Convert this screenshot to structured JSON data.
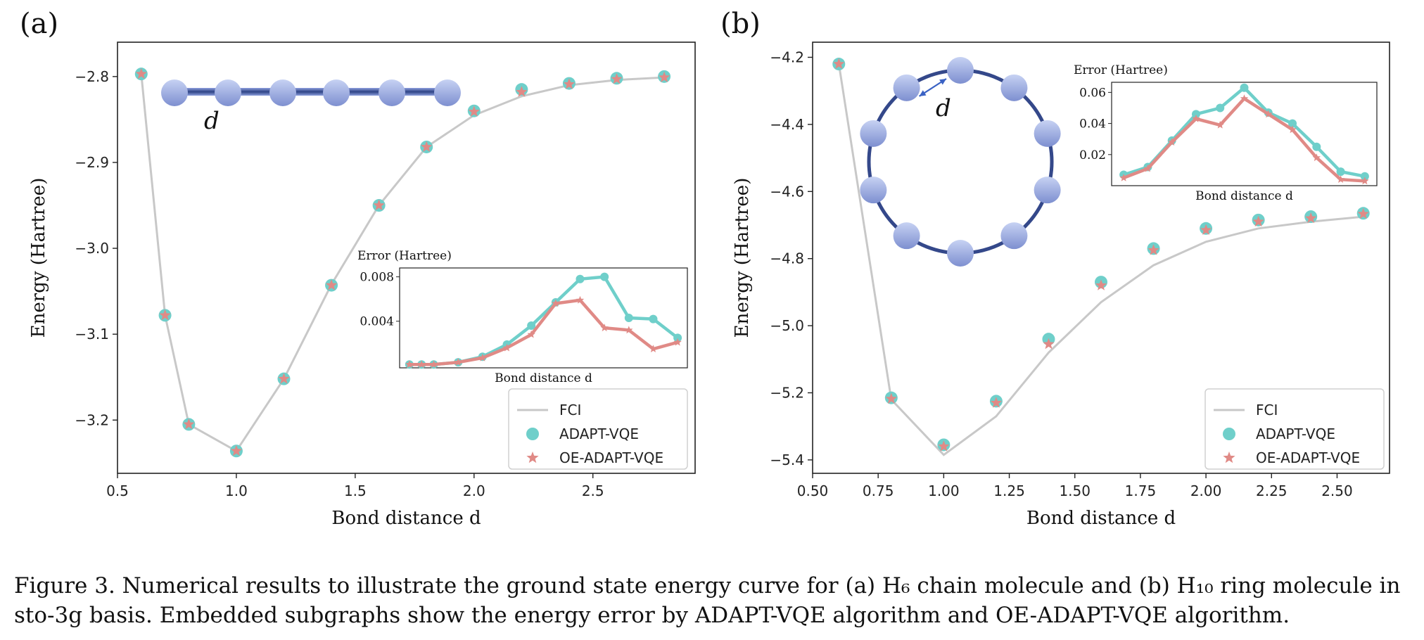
{
  "caption": {
    "line1": "Figure 3. Numerical results to illustrate the ground state energy curve for (a) H₆ chain molecule and (b) H₁₀ ring molecule in",
    "line2": "sto-3g basis. Embedded subgraphs show the energy error by ADAPT-VQE algorithm and OE-ADAPT-VQE algorithm."
  },
  "colors": {
    "fci": "#c8c8c8",
    "adapt": "#6fcfca",
    "oe": "#e08a86",
    "atom": "#7d8fd0",
    "bond": "#34488a",
    "arrow": "#3a62c4"
  },
  "icons": {
    "atom": "sphere-icon",
    "arrow": "double-arrow-icon"
  },
  "chart_data": [
    {
      "panel_label": "(a)",
      "type": "line",
      "xlabel": "Bond distance d",
      "ylabel": "Energy (Hartree)",
      "xlim": [
        0.5,
        2.93
      ],
      "ylim": [
        -3.262,
        -2.76
      ],
      "xticks": [
        0.5,
        1.0,
        1.5,
        2.0,
        2.5
      ],
      "xtick_labels": [
        "0.5",
        "1.0",
        "1.5",
        "2.0",
        "2.5"
      ],
      "yticks": [
        -2.8,
        -2.9,
        -3.0,
        -3.1,
        -3.2
      ],
      "ytick_labels": [
        "−2.8",
        "−2.9",
        "−3.0",
        "−3.1",
        "−3.2"
      ],
      "diagram_label": "d",
      "legend_position": "lower right",
      "series": [
        {
          "name": "FCI",
          "type": "line",
          "x": [
            0.6,
            0.7,
            0.8,
            1.0,
            1.2,
            1.4,
            1.6,
            1.8,
            2.0,
            2.2,
            2.4,
            2.6,
            2.8
          ],
          "y": [
            -2.797,
            -3.078,
            -3.205,
            -3.236,
            -3.152,
            -3.042,
            -2.95,
            -2.882,
            -2.845,
            -2.823,
            -2.81,
            -2.804,
            -2.801
          ]
        },
        {
          "name": "ADAPT-VQE",
          "type": "scatter",
          "x": [
            0.6,
            0.7,
            0.8,
            1.0,
            1.2,
            1.4,
            1.6,
            1.8,
            2.0,
            2.2,
            2.4,
            2.6,
            2.8
          ],
          "y": [
            -2.797,
            -3.078,
            -3.205,
            -3.236,
            -3.152,
            -3.043,
            -2.95,
            -2.882,
            -2.84,
            -2.815,
            -2.808,
            -2.802,
            -2.8
          ]
        },
        {
          "name": "OE-ADAPT-VQE",
          "type": "scatter",
          "x": [
            0.6,
            0.7,
            0.8,
            1.0,
            1.2,
            1.4,
            1.6,
            1.8,
            2.0,
            2.2,
            2.4,
            2.6,
            2.8
          ],
          "y": [
            -2.797,
            -3.078,
            -3.205,
            -3.236,
            -3.152,
            -3.043,
            -2.95,
            -2.882,
            -2.841,
            -2.818,
            -2.809,
            -2.803,
            -2.801
          ]
        }
      ],
      "inset": {
        "ylabel": "Error (Hartree)",
        "xlabel": "Bond distance d",
        "xlim": [
          0.52,
          2.88
        ],
        "ylim": [
          -0.0002,
          0.0088
        ],
        "yticks": [
          0.004,
          0.008
        ],
        "ytick_labels": [
          "0.004",
          "0.008"
        ],
        "series": [
          {
            "name": "ADAPT-VQE",
            "x": [
              0.6,
              0.7,
              0.8,
              1.0,
              1.2,
              1.4,
              1.6,
              1.8,
              2.0,
              2.2,
              2.4,
              2.6,
              2.8
            ],
            "y": [
              0.0001,
              0.0001,
              0.0001,
              0.0003,
              0.0008,
              0.0019,
              0.0036,
              0.0057,
              0.0078,
              0.008,
              0.0043,
              0.0042,
              0.0025
            ]
          },
          {
            "name": "OE-ADAPT-VQE",
            "x": [
              0.6,
              0.7,
              0.8,
              1.0,
              1.2,
              1.4,
              1.6,
              1.8,
              2.0,
              2.2,
              2.4,
              2.6,
              2.8
            ],
            "y": [
              0.0001,
              0.0001,
              0.0001,
              0.0003,
              0.0007,
              0.0016,
              0.0028,
              0.0056,
              0.0059,
              0.0034,
              0.0032,
              0.0015,
              0.0021
            ]
          }
        ]
      }
    },
    {
      "panel_label": "(b)",
      "type": "line",
      "xlabel": "Bond distance d",
      "ylabel": "Energy (Hartree)",
      "xlim": [
        0.5,
        2.7
      ],
      "ylim": [
        -5.44,
        -4.155
      ],
      "xticks": [
        0.5,
        0.75,
        1.0,
        1.25,
        1.5,
        1.75,
        2.0,
        2.25,
        2.5
      ],
      "xtick_labels": [
        "0.50",
        "0.75",
        "1.00",
        "1.25",
        "1.50",
        "1.75",
        "2.00",
        "2.25",
        "2.50"
      ],
      "yticks": [
        -4.2,
        -4.4,
        -4.6,
        -4.8,
        -5.0,
        -5.2,
        -5.4
      ],
      "ytick_labels": [
        "−4.2",
        "−4.4",
        "−4.6",
        "−4.8",
        "−5.0",
        "−5.2",
        "−5.4"
      ],
      "diagram_label": "d",
      "legend_position": "lower right",
      "series": [
        {
          "name": "FCI",
          "type": "line",
          "x": [
            0.6,
            0.8,
            1.0,
            1.2,
            1.4,
            1.6,
            1.8,
            2.0,
            2.2,
            2.4,
            2.6
          ],
          "y": [
            -4.22,
            -5.22,
            -5.385,
            -5.27,
            -5.08,
            -4.93,
            -4.82,
            -4.75,
            -4.71,
            -4.69,
            -4.675
          ]
        },
        {
          "name": "ADAPT-VQE",
          "type": "scatter",
          "x": [
            0.6,
            0.8,
            1.0,
            1.2,
            1.4,
            1.6,
            1.8,
            2.0,
            2.2,
            2.4,
            2.6
          ],
          "y": [
            -4.22,
            -5.215,
            -5.355,
            -5.225,
            -5.04,
            -4.87,
            -4.77,
            -4.71,
            -4.685,
            -4.675,
            -4.665
          ]
        },
        {
          "name": "OE-ADAPT-VQE",
          "type": "scatter",
          "x": [
            0.6,
            0.8,
            1.0,
            1.2,
            1.4,
            1.6,
            1.8,
            2.0,
            2.2,
            2.4,
            2.6
          ],
          "y": [
            -4.22,
            -5.218,
            -5.36,
            -5.23,
            -5.055,
            -4.88,
            -4.775,
            -4.715,
            -4.69,
            -4.68,
            -4.667
          ]
        }
      ],
      "inset": {
        "ylabel": "Error (Hartree)",
        "xlabel": "Bond distance d",
        "xlim": [
          0.5,
          2.7
        ],
        "ylim": [
          0.0,
          0.0665
        ],
        "yticks": [
          0.02,
          0.04,
          0.06
        ],
        "ytick_labels": [
          "0.02",
          "0.04",
          "0.06"
        ],
        "series": [
          {
            "name": "ADAPT-VQE",
            "x": [
              0.6,
              0.8,
              1.0,
              1.2,
              1.4,
              1.6,
              1.8,
              2.0,
              2.2,
              2.4,
              2.6
            ],
            "y": [
              0.007,
              0.012,
              0.029,
              0.046,
              0.05,
              0.063,
              0.047,
              0.04,
              0.025,
              0.009,
              0.006
            ]
          },
          {
            "name": "OE-ADAPT-VQE",
            "x": [
              0.6,
              0.8,
              1.0,
              1.2,
              1.4,
              1.6,
              1.8,
              2.0,
              2.2,
              2.4,
              2.6
            ],
            "y": [
              0.005,
              0.011,
              0.028,
              0.043,
              0.039,
              0.056,
              0.046,
              0.036,
              0.018,
              0.004,
              0.003
            ]
          }
        ]
      }
    }
  ]
}
